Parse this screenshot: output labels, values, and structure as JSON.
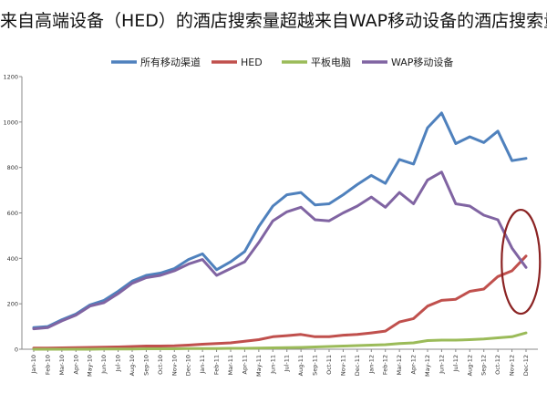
{
  "title": "来自高端设备（HED）的酒店搜索量超越来自WAP移动设备的酒店搜索量",
  "chart_data": {
    "type": "line",
    "title": "来自高端设备（HED）的酒店搜索量超越来自WAP移动设备的酒店搜索量",
    "xlabel": "",
    "ylabel": "",
    "ylim": [
      0,
      1200
    ],
    "yticks": [
      0,
      200,
      400,
      600,
      800,
      1000,
      1200
    ],
    "grid": false,
    "legend_position": "top",
    "categories": [
      "Jan-10",
      "Feb-10",
      "Mar-10",
      "Apr-10",
      "May-10",
      "Jun-10",
      "Jul-10",
      "Aug-10",
      "Sep-10",
      "Oct-10",
      "Nov-10",
      "Dec-10",
      "Jan-11",
      "Feb-11",
      "Mar-11",
      "Apr-11",
      "May-11",
      "Jun-11",
      "Jul-11",
      "Aug-11",
      "Sep-11",
      "Oct-11",
      "Nov-11",
      "Dec-11",
      "Jan-12",
      "Feb-12",
      "Mar-12",
      "Apr-12",
      "May-12",
      "Jun-12",
      "Jul-12",
      "Aug-12",
      "Sep-12",
      "Oct-12",
      "Nov-12",
      "Dec-12"
    ],
    "series": [
      {
        "name": "所有移动渠道",
        "color": "#4f81bd",
        "values": [
          95,
          100,
          130,
          155,
          195,
          215,
          255,
          300,
          325,
          335,
          355,
          395,
          420,
          350,
          385,
          430,
          540,
          630,
          680,
          690,
          635,
          640,
          680,
          725,
          765,
          730,
          835,
          815,
          975,
          1040,
          905,
          935,
          910,
          960,
          830,
          840
        ]
      },
      {
        "name": "HED",
        "color": "#c0504d",
        "values": [
          5,
          5,
          6,
          7,
          8,
          9,
          10,
          12,
          14,
          14,
          15,
          18,
          22,
          25,
          28,
          35,
          42,
          55,
          60,
          65,
          55,
          55,
          62,
          65,
          72,
          80,
          120,
          135,
          190,
          215,
          220,
          255,
          265,
          320,
          345,
          410
        ]
      },
      {
        "name": "平板电脑",
        "color": "#9bbb59",
        "values": [
          0,
          0,
          0,
          0,
          0,
          1,
          1,
          1,
          2,
          2,
          2,
          3,
          3,
          3,
          4,
          4,
          5,
          6,
          7,
          8,
          10,
          12,
          14,
          16,
          18,
          20,
          25,
          28,
          38,
          40,
          40,
          42,
          45,
          50,
          55,
          72
        ]
      },
      {
        "name": "WAP移动设备",
        "color": "#8064a2",
        "values": [
          90,
          95,
          125,
          150,
          190,
          205,
          245,
          290,
          315,
          325,
          345,
          375,
          395,
          325,
          355,
          385,
          470,
          565,
          605,
          625,
          570,
          565,
          600,
          630,
          670,
          625,
          690,
          640,
          745,
          780,
          640,
          630,
          590,
          570,
          445,
          360
        ]
      }
    ],
    "annotation": {
      "shape": "ellipse",
      "color": "#8b2323",
      "around_categories": [
        "Nov-12",
        "Dec-12"
      ]
    }
  }
}
